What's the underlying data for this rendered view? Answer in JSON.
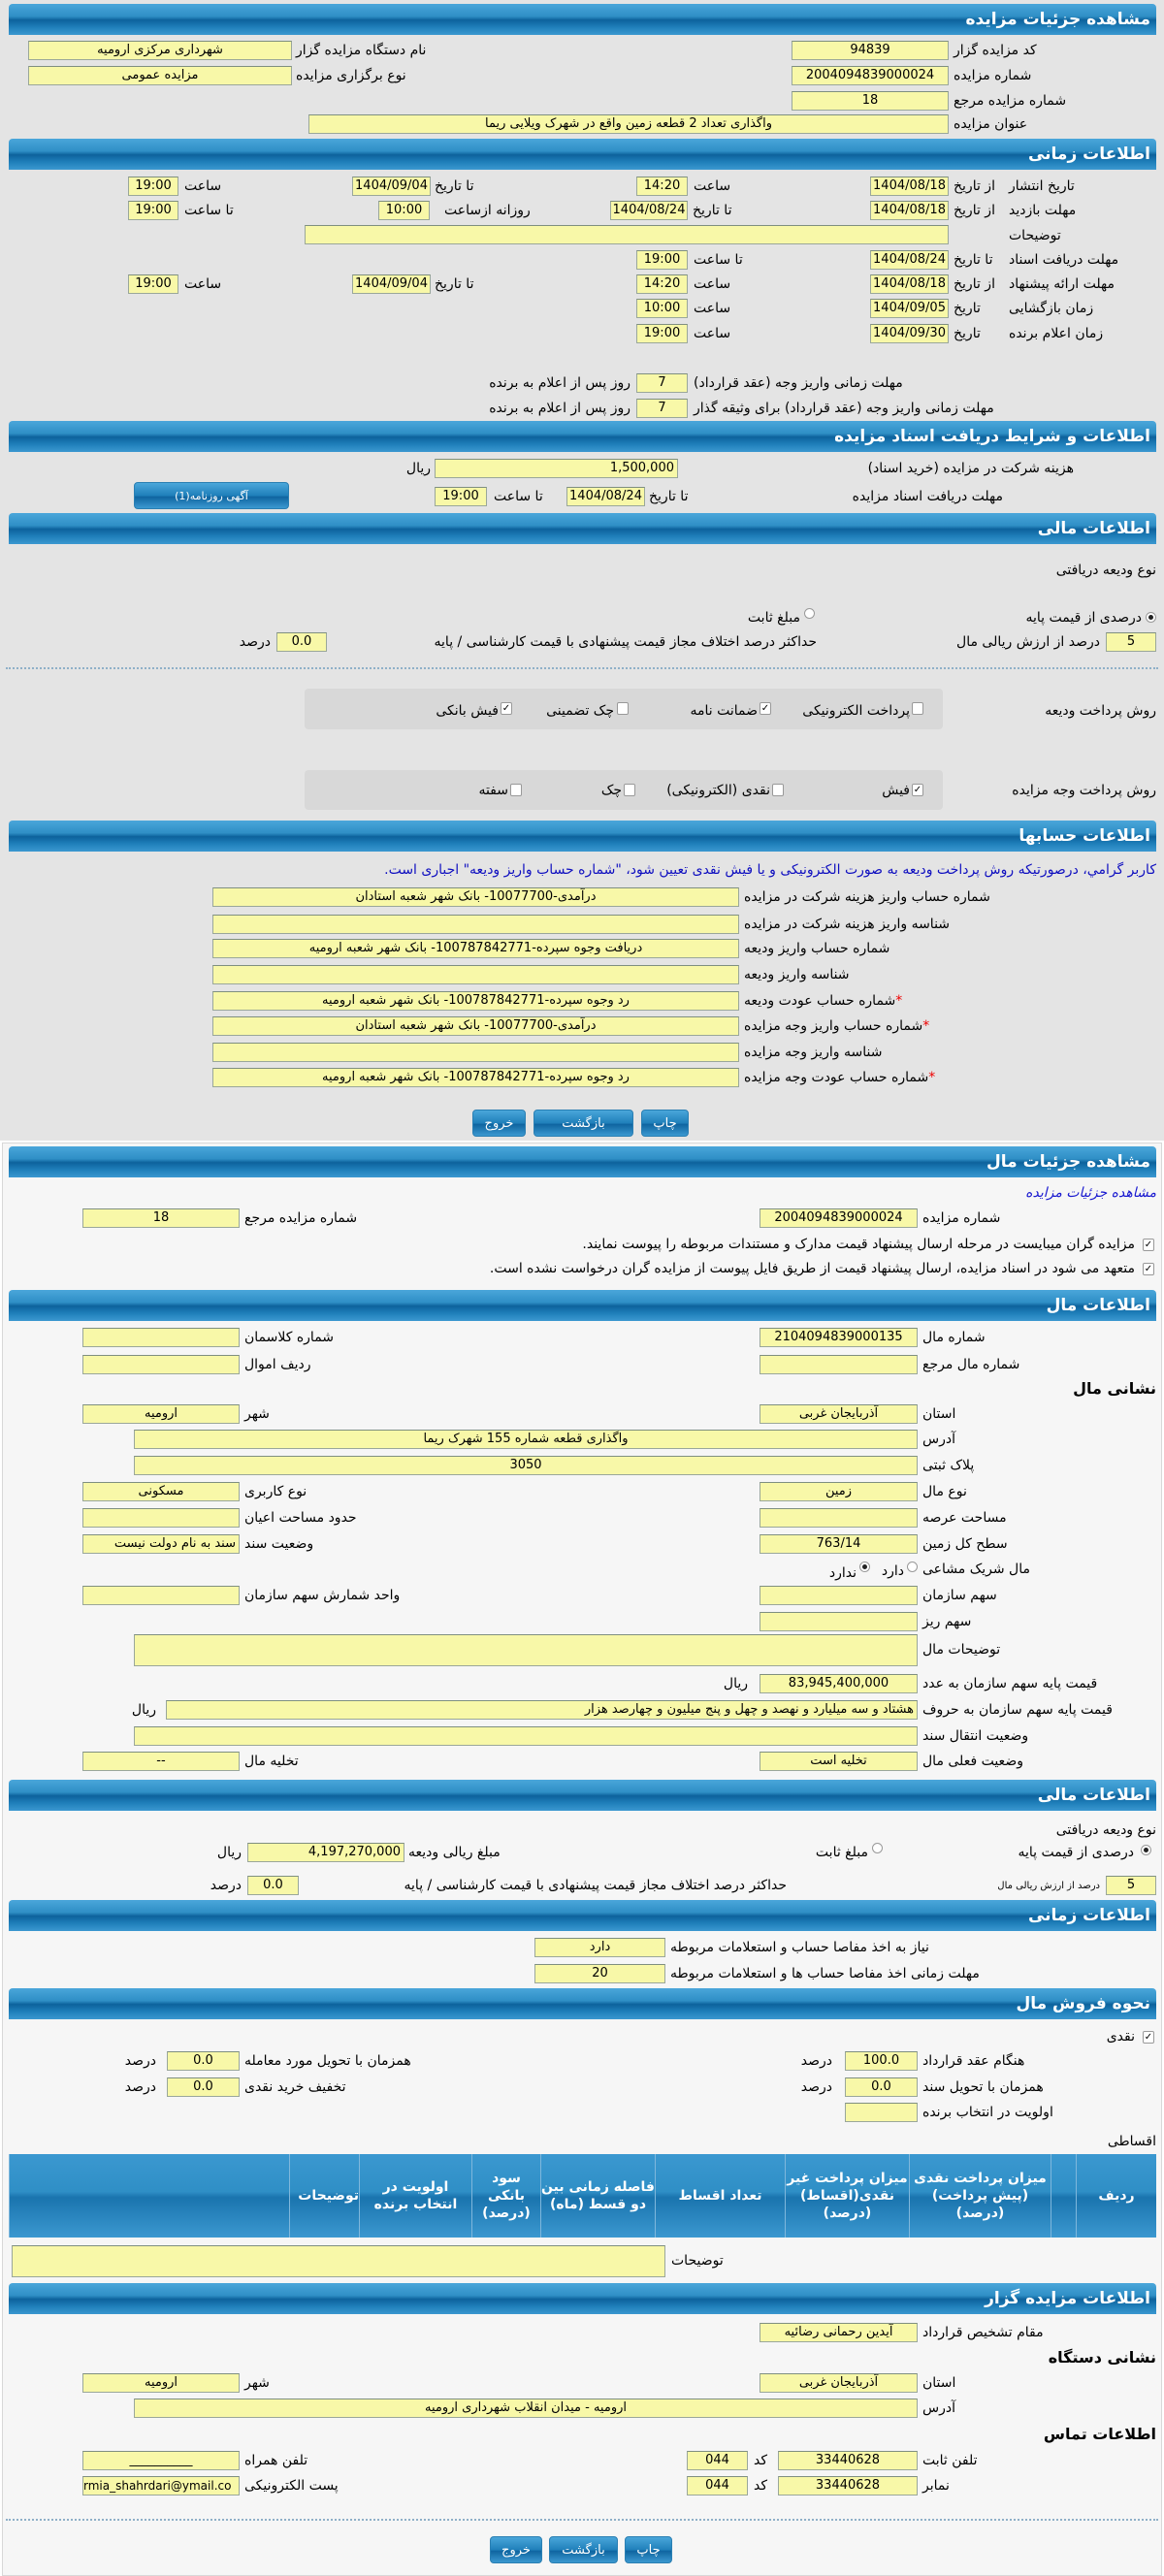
{
  "auction": {
    "title": "مشاهده جزئیات مزایده",
    "code_label": "کد مزایده گزار",
    "code": "94839",
    "org_label": "نام دستگاه مزایده گزار",
    "org": "شهرداری مرکزی ارومیه",
    "number_label": "شماره مزایده",
    "number": "2004094839000024",
    "type_label": "نوع برگزاری مزایده",
    "type": "مزایده عمومی",
    "ref_label": "شماره مزایده مرجع",
    "ref": "18",
    "subject_label": "عنوان مزایده",
    "subject": "واگذاری تعداد 2 قطعه زمین واقع در شهرک ویلایی ریما"
  },
  "timing": {
    "title": "اطلاعات زمانی",
    "from_date": "از تاریخ",
    "to_date": "تا تاریخ",
    "date": "تاریخ",
    "hour": "ساعت",
    "to_hour": "تا ساعت",
    "daily_from": "روزانه ازساعت",
    "publish_label": "تاریخ انتشار",
    "publish_from": "1404/08/18",
    "publish_from_time": "14:20",
    "publish_to": "1404/09/04",
    "publish_to_time": "19:00",
    "visit_label": "مهلت بازدید",
    "visit_from": "1404/08/18",
    "visit_to": "1404/08/24",
    "visit_daily_from": "10:00",
    "visit_to_time": "19:00",
    "desc_label": "توضیحات",
    "desc": "",
    "docs_label": "مهلت دریافت اسناد",
    "docs_to": "1404/08/24",
    "docs_to_time": "19:00",
    "offer_label": "مهلت ارائه پیشنهاد",
    "offer_from": "1404/08/18",
    "offer_from_time": "14:20",
    "offer_to": "1404/09/04",
    "offer_to_time": "19:00",
    "opening_label": "زمان بازگشایی",
    "opening_date": "1404/09/05",
    "opening_time": "10:00",
    "winner_label": "زمان اعلام برنده",
    "winner_date": "1404/09/30",
    "winner_time": "19:00",
    "pay_label": "مهلت زمانی واریز وجه (عقد قرارداد)",
    "pay_days": "7",
    "pay2_label": "مهلت زمانی واریز وجه (عقد قرارداد) برای وثیقه گذار",
    "pay2_days": "7",
    "days_after": "روز پس از اعلام به برنده"
  },
  "documents": {
    "title": "اطلاعات و شرایط دریافت اسناد مزایده",
    "fee_label": "هزینه شرکت در مزایده (خرید اسناد)",
    "fee": "1,500,000",
    "rial": "ریال",
    "deadline_label": "مهلت دریافت اسناد مزایده",
    "to_date": "تا تاریخ",
    "date": "1404/08/24",
    "to_hour": "تا ساعت",
    "time": "19:00",
    "newspaper_button": "آگهی روزنامه(1)"
  },
  "finance": {
    "title": "اطلاعات مالی",
    "deposit_type_label": "نوع ودیعه دریافتی",
    "percent_option": "درصدی از قیمت پایه",
    "fixed_option": "مبلغ ثابت",
    "selected": "percent",
    "percent_value": "5",
    "percent_text": "درصد از ارزش ریالی مال",
    "max_diff_label": "حداکثر درصد اختلاف مجاز قیمت پیشنهادی با قیمت کارشناسی / پایه",
    "max_diff": "0.0",
    "percent_unit": "درصد",
    "deposit_method_label": "روش پرداخت ودیعه",
    "deposit_methods": [
      {
        "label": "پرداخت الکترونیکی",
        "checked": false
      },
      {
        "label": "ضمانت نامه",
        "checked": true
      },
      {
        "label": "چک تضمینی",
        "checked": false
      },
      {
        "label": "فیش بانکی",
        "checked": true
      }
    ],
    "payment_method_label": "روش پرداخت وجه مزایده",
    "payment_methods": [
      {
        "label": "فیش",
        "checked": true
      },
      {
        "label": "نقدی (الکترونیکی)",
        "checked": false
      },
      {
        "label": "چک",
        "checked": false
      },
      {
        "label": "سفته",
        "checked": false
      }
    ]
  },
  "accounts": {
    "title": "اطلاعات حسابها",
    "note": "کاربر گرامي، درصورتیکه روش پرداخت ودیعه به صورت الکترونیکی و یا فیش نقدی تعیین شود، \"شماره حساب واریز ودیعه\" اجباری است.",
    "rows": [
      {
        "label": "شماره حساب واریز هزینه شرکت در مزایده",
        "required": false,
        "value": "درآمدی-10077700- بانک شهر شعبه استادان"
      },
      {
        "label": "شناسه واریز هزینه شرکت در مزایده",
        "required": false,
        "value": ""
      },
      {
        "label": "شماره حساب واریز ودیعه",
        "required": false,
        "value": "دریافت وجوه سپرده-100787842771- بانک شهر شعبه ارومیه"
      },
      {
        "label": "شناسه واریز ودیعه",
        "required": false,
        "value": ""
      },
      {
        "label": "شماره حساب عودت ودیعه",
        "required": true,
        "value": "رد وجوه سپرده-100787842771- بانک شهر شعبه ارومیه"
      },
      {
        "label": "شماره حساب واریز وجه مزایده",
        "required": true,
        "value": "درآمدی-10077700- بانک شهر شعبه استادان"
      },
      {
        "label": "شناسه واریز وجه مزایده",
        "required": false,
        "value": ""
      },
      {
        "label": "شماره حساب عودت وجه مزایده",
        "required": true,
        "value": "رد وجوه سپرده-100787842771- بانک شهر شعبه ارومیه"
      }
    ],
    "star": "*"
  },
  "buttons": {
    "print": "چاپ",
    "back": "بازگشت",
    "exit": "خروج"
  },
  "property": {
    "title": "مشاهده جزئیات مال",
    "auction_link": "مشاهده جزئیات مزایده",
    "auction_number_label": "شماره مزایده",
    "auction_number": "2004094839000024",
    "auction_ref_label": "شماره مزایده مرجع",
    "auction_ref": "18",
    "check1": "مزایده گران میبایست در مرحله ارسال پیشنهاد قیمت مدارک و مستندات مربوطه را پیوست نمایند.",
    "check2": "متعهد می شود در اسناد مزایده، ارسال پیشنهاد قیمت از طریق فایل پیوست از مزایده گران درخواست نشده است.",
    "info_title": "اطلاعات مال",
    "number_label": "شماره مال",
    "number": "2104094839000135",
    "class_label": "شماره کلاسمان",
    "class": "",
    "ref_label": "شماره مال مرجع",
    "ref": "",
    "row_label": "ردیف اموال",
    "row": "",
    "address_title": "نشانی مال",
    "province_label": "استان",
    "province": "آذربایجان غربی",
    "city_label": "شهر",
    "city": "ارومیه",
    "address_label": "آدرس",
    "address": "واگذاری قطعه شماره 155 شهرک ریما",
    "plate_label": "پلاک ثبتی",
    "plate": "3050",
    "kind_label": "نوع مال",
    "kind": "زمین",
    "usage_label": "نوع کاربری",
    "usage": "مسکونی",
    "land_area_label": "مساحت عرصه",
    "land_area": "",
    "building_area_label": "حدود مساحت اعیان",
    "building_area": "",
    "total_area_label": "سطح کل زمین",
    "total_area": "763/14",
    "deed_label": "وضعیت سند",
    "deed": "سند به نام دولت نیست",
    "shared_label": "مال شریک مشاعی",
    "shared_yes": "دارد",
    "shared_no": "ندارد",
    "shared": "no",
    "org_share_label": "سهم سازمان",
    "org_share": "",
    "share_unit_label": "واحد شمارش سهم سازمان",
    "share_unit": "",
    "micro_share_label": "سهم ریز",
    "micro_share": "",
    "desc_label": "توضیحات مال",
    "desc": "",
    "price_num_label": "قیمت پایه سهم سازمان به عدد",
    "price_num": "83,945,400,000",
    "price_text_label": "قیمت پایه سهم سازمان به حروف",
    "price_text": "هشتاد و سه میلیارد و نهصد و چهل و پنج میلیون و چهارصد هزار",
    "rial": "ریال",
    "transfer_label": "وضعیت انتقال سند",
    "transfer": "",
    "status_label": "وضعیت فعلی مال",
    "status": "تخلیه است",
    "evac_label": "تخلیه مال",
    "evac": "--"
  },
  "finance2": {
    "title": "اطلاعات مالی",
    "deposit_type_label": "نوع ودیعه دریافتی",
    "percent_option": "درصدی از قیمت پایه",
    "fixed_option": "مبلغ ثابت",
    "selected": "percent",
    "deposit_amount_label": "مبلغ ریالی ودیعه",
    "deposit_amount": "4,197,270,000",
    "rial": "ریال",
    "percent_value": "5",
    "percent_text": "درصد از ارزش ریالی مال",
    "max_diff_label": "حداکثر درصد اختلاف مجاز قیمت پیشنهادی با قیمت کارشناسی / پایه",
    "max_diff": "0.0",
    "percent_unit": "درصد"
  },
  "timing2": {
    "title": "اطلاعات زمانی",
    "clearance_label": "نیاز به اخذ مفاصا حساب و استعلامات مربوطه",
    "clearance": "دارد",
    "clearance_deadline_label": "مهلت زمانی اخذ مفاصا حساب ها و استعلامات مربوطه",
    "clearance_deadline": "20"
  },
  "sale": {
    "title": "نحوه فروش مال",
    "cash_label": "نقدی",
    "cash_checked": true,
    "contract_label": "هنگام عقد قرارداد",
    "contract": "100.0",
    "delivery_label": "همزمان با تحویل مورد معامله",
    "delivery": "0.0",
    "deed_label": "همزمان با تحویل سند",
    "deed": "0.0",
    "discount_label": "تخفیف خرید نقدی",
    "discount": "0.0",
    "priority_label": "اولویت در انتخاب برنده",
    "priority": "",
    "percent_unit": "درصد",
    "installment_label": "اقساطی",
    "table_headers": [
      "ردیف",
      "",
      "میزان پرداخت نقدی (پیش پرداخت) (درصد)",
      "میزان پرداخت غیر نقدی(اقساط) (درصد)",
      "تعداد اقساط",
      "فاصله زمانی بین دو قسط (ماه)",
      "سود بانکی (درصد)",
      "اولویت در انتخاب برنده",
      "توضیحات",
      ""
    ],
    "desc_label": "توضیحات",
    "desc": ""
  },
  "auctioneer": {
    "title": "اطلاعات مزایده گزار",
    "authority_label": "مقام تشخیص قرارداد",
    "authority": "آیدین رحمانی رضائیه",
    "address_title": "نشانی دستگاه",
    "province_label": "استان",
    "province": "آذربایجان غربی",
    "city_label": "شهر",
    "city": "ارومیه",
    "address_label": "آدرس",
    "address": "ارومیه - میدان انقلاب شهرداری ارومیه",
    "contact_title": "اطلاعات تماس",
    "phone_label": "تلفن ثابت",
    "phone": "33440628",
    "code_label": "کد",
    "phone_code": "044",
    "mobile_label": "تلفن همراه",
    "mobile": "__________",
    "fax_label": "نمابر",
    "fax": "33440628",
    "fax_code": "044",
    "email_label": "پست الکترونیکی",
    "email": "rmia_shahrdari@ymail.co"
  }
}
